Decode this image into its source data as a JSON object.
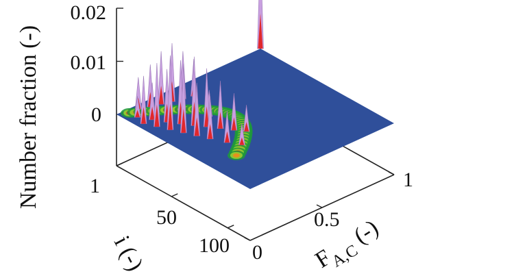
{
  "chart_data": {
    "type": "surface-3d",
    "title": "",
    "zlabel": "Number fraction (-)",
    "ylabel": "i (-)",
    "xlabel_main": "F",
    "xlabel_sub": "A,C",
    "xlabel_tail": " (-)",
    "z_ticks": [
      "0.02",
      "0.01",
      "0"
    ],
    "z_tick_values": [
      0.02,
      0.01,
      0
    ],
    "i_ticks": [
      "1",
      "50",
      "100"
    ],
    "i_tick_values": [
      1,
      50,
      100
    ],
    "f_ticks": [
      "0",
      "0.5",
      "1"
    ],
    "f_tick_values": [
      0,
      0.5,
      1
    ],
    "zlim": [
      0,
      0.02
    ],
    "ilim": [
      1,
      120
    ],
    "flim": [
      0,
      1
    ],
    "plane_color": "#2f4f9a",
    "peak_colors": [
      "#1f9a3a",
      "#9ccc2f",
      "#f2e21c",
      "#f08a1c",
      "#e0282c",
      "#c9a0e0"
    ],
    "series": [
      {
        "points": [
          {
            "i": 12,
            "f": 0.06,
            "z": 0.004
          },
          {
            "i": 20,
            "f": 0.1,
            "z": 0.007
          },
          {
            "i": 28,
            "f": 0.14,
            "z": 0.01
          },
          {
            "i": 35,
            "f": 0.18,
            "z": 0.012
          },
          {
            "i": 42,
            "f": 0.22,
            "z": 0.013
          },
          {
            "i": 48,
            "f": 0.26,
            "z": 0.011
          },
          {
            "i": 55,
            "f": 0.3,
            "z": 0.009
          },
          {
            "i": 62,
            "f": 0.34,
            "z": 0.007
          },
          {
            "i": 68,
            "f": 0.38,
            "z": 0.005
          },
          {
            "i": 20,
            "f": 0.04,
            "z": 0.009
          },
          {
            "i": 28,
            "f": 0.07,
            "z": 0.012
          },
          {
            "i": 36,
            "f": 0.1,
            "z": 0.014
          },
          {
            "i": 44,
            "f": 0.13,
            "z": 0.013
          },
          {
            "i": 52,
            "f": 0.16,
            "z": 0.01
          },
          {
            "i": 60,
            "f": 0.19,
            "z": 0.008
          },
          {
            "i": 70,
            "f": 0.23,
            "z": 0.006
          },
          {
            "i": 78,
            "f": 0.27,
            "z": 0.004
          },
          {
            "i": 5,
            "f": 0.12,
            "z": 0.006
          },
          {
            "i": 8,
            "f": 0.18,
            "z": 0.008
          },
          {
            "i": 10,
            "f": 0.24,
            "z": 0.01
          },
          {
            "i": 12,
            "f": 0.3,
            "z": 0.011
          },
          {
            "i": 14,
            "f": 0.36,
            "z": 0.009
          },
          {
            "i": 16,
            "f": 0.42,
            "z": 0.007
          },
          {
            "i": 30,
            "f": 0.32,
            "z": 0.006
          },
          {
            "i": 40,
            "f": 0.34,
            "z": 0.005
          },
          {
            "i": 1,
            "f": 1.0,
            "z": 0.019
          }
        ]
      }
    ]
  }
}
